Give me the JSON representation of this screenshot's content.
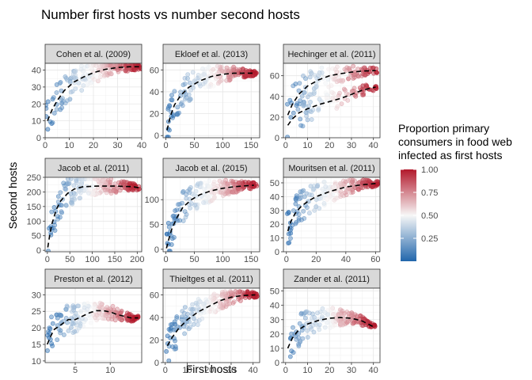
{
  "chart_data": {
    "type": "scatter",
    "title": "Number first hosts vs number second hosts",
    "xlabel": "First hosts",
    "ylabel": "Second hosts",
    "color_legend": {
      "title_lines": [
        "Proportion primary",
        "consumers in food web",
        "infected as first hosts"
      ],
      "ticks": [
        0.25,
        0.5,
        0.75,
        1.0
      ],
      "tick_labels": [
        "0.25",
        "0.50",
        "0.75",
        "1.00"
      ],
      "range": [
        0,
        1
      ],
      "low_color": "#2166ac",
      "mid_color": "#f7f7f7",
      "high_color": "#b2182b"
    },
    "trend_line": {
      "style": "dashed",
      "color": "#000000"
    },
    "panels": [
      {
        "name": "Cohen et al. (2009)",
        "xlim": [
          0,
          40
        ],
        "ylim": [
          0,
          44
        ],
        "xticks": [
          0,
          10,
          20,
          30,
          40
        ],
        "yticks": [
          0,
          10,
          20,
          30,
          40
        ],
        "x_max_data": 40,
        "y_plateau": 42,
        "trend": [
          [
            1,
            10
          ],
          [
            3,
            17
          ],
          [
            5,
            22
          ],
          [
            8,
            28
          ],
          [
            12,
            33
          ],
          [
            16,
            36
          ],
          [
            20,
            38.5
          ],
          [
            25,
            40.5
          ],
          [
            30,
            41.5
          ],
          [
            35,
            42
          ],
          [
            39,
            42
          ]
        ]
      },
      {
        "name": "Ekloef et al. (2013)",
        "xlim": [
          -5,
          165
        ],
        "ylim": [
          -2,
          66
        ],
        "xticks": [
          0,
          50,
          100,
          150
        ],
        "yticks": [
          0,
          20,
          40,
          60
        ],
        "x_max_data": 160,
        "y_plateau": 57,
        "trend": [
          [
            2,
            5
          ],
          [
            8,
            18
          ],
          [
            15,
            28
          ],
          [
            25,
            36
          ],
          [
            40,
            44
          ],
          [
            60,
            50
          ],
          [
            80,
            54
          ],
          [
            100,
            56
          ],
          [
            120,
            57
          ],
          [
            140,
            57
          ],
          [
            155,
            57
          ]
        ]
      },
      {
        "name": "Hechinger et al. (2011)",
        "xlim": [
          -1,
          43
        ],
        "ylim": [
          0,
          72
        ],
        "xticks": [
          0,
          10,
          20,
          30,
          40
        ],
        "yticks": [
          0,
          20,
          40,
          60
        ],
        "x_max_data": 42,
        "y_plateau": 65,
        "trend": [
          [
            1,
            22
          ],
          [
            3,
            32
          ],
          [
            6,
            42
          ],
          [
            10,
            50
          ],
          [
            15,
            56
          ],
          [
            20,
            60
          ],
          [
            25,
            62
          ],
          [
            30,
            63.5
          ],
          [
            35,
            64.5
          ],
          [
            41,
            65
          ]
        ],
        "trend2": [
          [
            1,
            12
          ],
          [
            3,
            18
          ],
          [
            6,
            24
          ],
          [
            10,
            28
          ],
          [
            15,
            32
          ],
          [
            20,
            35
          ],
          [
            25,
            38
          ],
          [
            30,
            42
          ],
          [
            35,
            46
          ],
          [
            41,
            49
          ]
        ]
      },
      {
        "name": "Jacob et al. (2011)",
        "xlim": [
          -5,
          210
        ],
        "ylim": [
          -5,
          250
        ],
        "xticks": [
          0,
          50,
          100,
          150,
          200
        ],
        "yticks": [
          0,
          50,
          100,
          150,
          200,
          250
        ],
        "x_max_data": 205,
        "y_plateau": 220,
        "trend": [
          [
            1,
            10
          ],
          [
            5,
            50
          ],
          [
            10,
            90
          ],
          [
            20,
            140
          ],
          [
            30,
            170
          ],
          [
            45,
            195
          ],
          [
            60,
            210
          ],
          [
            80,
            218
          ],
          [
            110,
            220
          ],
          [
            150,
            220
          ],
          [
            190,
            218
          ],
          [
            205,
            214
          ]
        ]
      },
      {
        "name": "Jacob et al. (2015)",
        "xlim": [
          -5,
          165
        ],
        "ylim": [
          -5,
          145
        ],
        "xticks": [
          0,
          50,
          100,
          150
        ],
        "yticks": [
          0,
          50,
          100
        ],
        "x_max_data": 160,
        "y_plateau": 130,
        "trend": [
          [
            1,
            2
          ],
          [
            5,
            20
          ],
          [
            10,
            40
          ],
          [
            20,
            65
          ],
          [
            30,
            85
          ],
          [
            45,
            100
          ],
          [
            60,
            110
          ],
          [
            80,
            118
          ],
          [
            100,
            123
          ],
          [
            120,
            126
          ],
          [
            140,
            128
          ],
          [
            155,
            129
          ]
        ]
      },
      {
        "name": "Mouritsen et al. (2011)",
        "xlim": [
          -2,
          63
        ],
        "ylim": [
          0,
          54
        ],
        "xticks": [
          0,
          20,
          40,
          60
        ],
        "yticks": [
          0,
          10,
          20,
          30,
          40,
          50
        ],
        "x_max_data": 62,
        "y_plateau": 50,
        "trend": [
          [
            1,
            15
          ],
          [
            3,
            22
          ],
          [
            6,
            28
          ],
          [
            10,
            33
          ],
          [
            15,
            37
          ],
          [
            20,
            40
          ],
          [
            30,
            44
          ],
          [
            40,
            47
          ],
          [
            50,
            48.5
          ],
          [
            60,
            49.5
          ]
        ]
      },
      {
        "name": "Preston et al. (2012)",
        "xlim": [
          0.7,
          14.5
        ],
        "ylim": [
          9.5,
          32
        ],
        "xticks": [
          5,
          10
        ],
        "yticks": [
          10,
          15,
          20,
          25,
          30
        ],
        "x_max_data": 14,
        "y_plateau": 24,
        "trend": [
          [
            1,
            15
          ],
          [
            1.5,
            17.5
          ],
          [
            2,
            19.5
          ],
          [
            3,
            21
          ],
          [
            4,
            22.5
          ],
          [
            5,
            22.5
          ],
          [
            6,
            23.5
          ],
          [
            7,
            24.5
          ],
          [
            8,
            25.2
          ],
          [
            9,
            25.2
          ],
          [
            10,
            24.8
          ],
          [
            11,
            24
          ],
          [
            12,
            23.5
          ],
          [
            13,
            23
          ],
          [
            14,
            23
          ]
        ]
      },
      {
        "name": "Thieltges et al. (2011)",
        "xlim": [
          -1,
          43
        ],
        "ylim": [
          0,
          66
        ],
        "xticks": [
          0,
          10,
          20,
          30,
          40
        ],
        "yticks": [
          0,
          20,
          40,
          60
        ],
        "x_max_data": 42,
        "y_plateau": 60,
        "trend": [
          [
            1,
            15
          ],
          [
            3,
            22
          ],
          [
            6,
            30
          ],
          [
            10,
            38
          ],
          [
            15,
            45
          ],
          [
            20,
            50
          ],
          [
            25,
            55
          ],
          [
            30,
            58
          ],
          [
            35,
            59.5
          ],
          [
            41,
            60
          ]
        ]
      },
      {
        "name": "Zander et al. (2011)",
        "xlim": [
          -1,
          43
        ],
        "ylim": [
          0,
          52
        ],
        "xticks": [
          0,
          10,
          20,
          30,
          40
        ],
        "yticks": [
          0,
          10,
          20,
          30,
          40,
          50
        ],
        "x_max_data": 41,
        "y_plateau": 25,
        "trend": [
          [
            1,
            10
          ],
          [
            3,
            17
          ],
          [
            6,
            23
          ],
          [
            10,
            27
          ],
          [
            15,
            29.5
          ],
          [
            20,
            31
          ],
          [
            25,
            31.5
          ],
          [
            30,
            31
          ],
          [
            35,
            29
          ],
          [
            40,
            25
          ]
        ]
      }
    ]
  }
}
